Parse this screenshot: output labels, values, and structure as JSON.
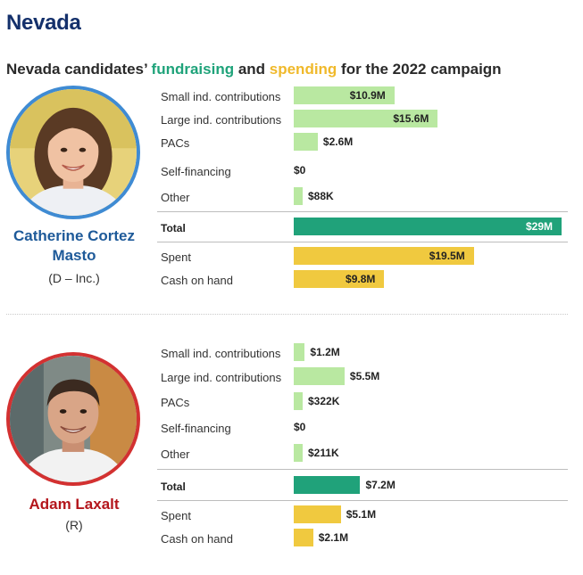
{
  "page": {
    "state": "Nevada",
    "subtitle_prefix": "Nevada candidates’ ",
    "subtitle_fund": "fundraising",
    "subtitle_and": " and ",
    "subtitle_spend": "spending",
    "subtitle_suffix": " for the 2022 campaign"
  },
  "colors": {
    "contribution": "#b9e8a1",
    "total": "#20a27a",
    "spending": "#f0c93f",
    "dem": "#3f8bd3",
    "rep": "#d33131",
    "dem_text": "#1e5a99",
    "rep_text": "#b4161c"
  },
  "candidates": [
    {
      "name_line1": "Catherine Cortez",
      "name_line2": "Masto",
      "party": "(D – Inc.)",
      "avatar_icon": "woman-portrait-icon"
    },
    {
      "name_line1": "Adam Laxalt",
      "name_line2": "",
      "party": "(R)",
      "avatar_icon": "man-portrait-icon"
    }
  ],
  "chart_data": [
    {
      "type": "bar",
      "candidate": "Catherine Cortez Masto",
      "unit": "million USD",
      "categories": [
        "Small ind. contributions",
        "Large ind. contributions",
        "PACs",
        "Self-financing",
        "Other",
        "Total",
        "Spent",
        "Cash on hand"
      ],
      "values": [
        10.9,
        15.6,
        2.6,
        0,
        0.088,
        29,
        19.5,
        9.8
      ],
      "labels": [
        "$10.9M",
        "$15.6M",
        "$2.6M",
        "$0",
        "$88K",
        "$29M",
        "$19.5M",
        "$9.8M"
      ],
      "groups": [
        "contribution",
        "contribution",
        "contribution",
        "contribution",
        "contribution",
        "total",
        "spending",
        "spending"
      ],
      "xlim": [
        0,
        29
      ]
    },
    {
      "type": "bar",
      "candidate": "Adam Laxalt",
      "unit": "million USD",
      "categories": [
        "Small ind. contributions",
        "Large ind. contributions",
        "PACs",
        "Self-financing",
        "Other",
        "Total",
        "Spent",
        "Cash on hand"
      ],
      "values": [
        1.2,
        5.5,
        0.322,
        0,
        0.211,
        7.2,
        5.1,
        2.1
      ],
      "labels": [
        "$1.2M",
        "$5.5M",
        "$322K",
        "$0",
        "$211K",
        "$7.2M",
        "$5.1M",
        "$2.1M"
      ],
      "groups": [
        "contribution",
        "contribution",
        "contribution",
        "contribution",
        "contribution",
        "total",
        "spending",
        "spending"
      ],
      "xlim": [
        0,
        29
      ]
    }
  ]
}
